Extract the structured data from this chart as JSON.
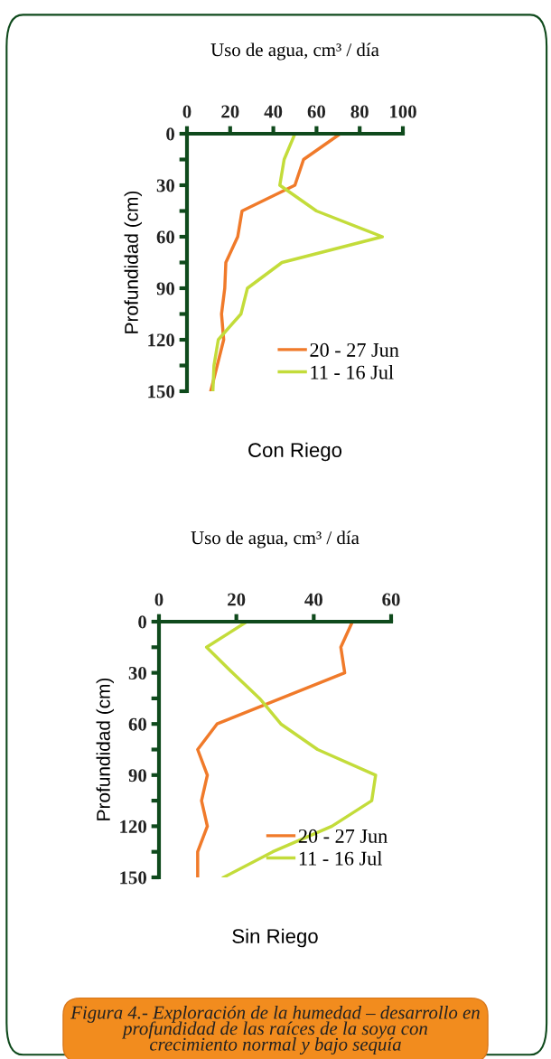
{
  "chart_data": [
    {
      "type": "line",
      "title": "Con Riego",
      "xlabel": "Uso de agua, cm³ / día",
      "ylabel": "Profundidad (cm)",
      "xlim": [
        0,
        100
      ],
      "xticks": [
        0,
        20,
        40,
        60,
        80,
        100
      ],
      "ylim": [
        150,
        0
      ],
      "yticks": [
        0,
        {
          "value": 15,
          "label": null
        },
        30,
        {
          "value": 45,
          "label": null
        },
        60,
        {
          "value": 75,
          "label": null
        },
        90,
        {
          "value": 105,
          "label": null
        },
        120,
        {
          "value": 135,
          "label": null
        },
        150
      ],
      "grid": false,
      "legend": "bottom right",
      "marker": "none",
      "line_style": "solid",
      "series": [
        {
          "name": "20 - 27 Jun",
          "color": "#f07a2a",
          "x": [
            71,
            54,
            50,
            25.5,
            23.5,
            18,
            17.5,
            16,
            17,
            11
          ],
          "values": [
            0,
            15,
            30,
            45,
            60,
            75,
            90,
            105,
            120,
            150
          ]
        },
        {
          "name": "11 - 16 Jul",
          "color": "#c3dc3a",
          "x": [
            50,
            45,
            43,
            60,
            90.5,
            44,
            28,
            25,
            14.5,
            12.5,
            12
          ],
          "values": [
            0,
            15,
            30,
            45,
            60,
            75,
            90,
            105,
            120,
            135,
            150
          ]
        }
      ]
    },
    {
      "type": "line",
      "title": "Sin Riego",
      "xlabel": "Uso de agua, cm³ / día",
      "ylabel": "Profundidad (cm)",
      "xlim": [
        0,
        60
      ],
      "xticks": [
        0,
        20,
        40,
        60
      ],
      "ylim": [
        150,
        0
      ],
      "yticks": [
        0,
        {
          "value": 15,
          "label": null
        },
        30,
        {
          "value": 45,
          "label": null
        },
        60,
        {
          "value": 75,
          "label": null
        },
        90,
        {
          "value": 105,
          "label": null
        },
        120,
        {
          "value": 135,
          "label": null
        },
        150
      ],
      "grid": false,
      "legend": "bottom right",
      "marker": "none",
      "line_style": "solid",
      "annotations": [
        "Figura 4.- Exploración de la humedad – desarrollo en\nprofundidad de las raíces de la soya con\ncrecimiento normal y bajo sequía"
      ],
      "series": [
        {
          "name": "20 - 27 Jun",
          "color": "#f07a2a",
          "x": [
            50,
            47,
            48,
            15,
            10,
            12.5,
            11,
            12.5,
            10,
            10
          ],
          "values": [
            0,
            15,
            30,
            60,
            75,
            90,
            105,
            120,
            135,
            150
          ]
        },
        {
          "name": "11 - 16 Jul",
          "color": "#c3dc3a",
          "x": [
            22.7,
            12.3,
            19,
            26,
            31.5,
            41,
            56,
            55,
            44.7,
            29.4,
            16.7
          ],
          "values": [
            0,
            15,
            30,
            45,
            60,
            75,
            90,
            105,
            120,
            135,
            150
          ]
        }
      ]
    }
  ]
}
